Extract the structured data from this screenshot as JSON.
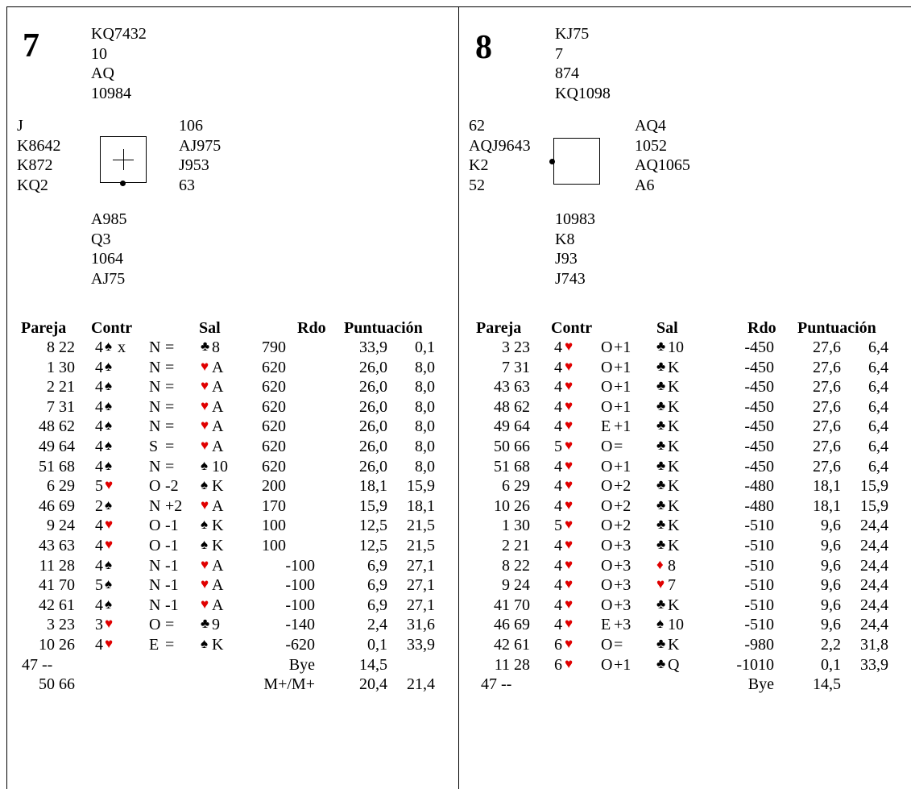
{
  "boards": [
    {
      "number": "7",
      "north": [
        "KQ7432",
        "10",
        "AQ",
        "10984"
      ],
      "west": [
        "J",
        "K8642",
        "K872",
        "KQ2"
      ],
      "east": [
        "106",
        "AJ975",
        "J953",
        "63"
      ],
      "south": [
        "A985",
        "Q3",
        "1064",
        "AJ75"
      ],
      "headers": {
        "pareja": "Pareja",
        "contr": "Contr",
        "sal": "Sal",
        "rdo": "Rdo",
        "puntuacion": "Puntuación"
      },
      "rows": [
        {
          "pair": "8 22",
          "lvl": "4",
          "csuit": "♠",
          "dbl": "x",
          "decl": "N",
          "res": "=",
          "lsuit": "♣",
          "lcard": "8",
          "rdo": "790",
          "rdo_neg": false,
          "p1": "33,9",
          "p2": "0,1"
        },
        {
          "pair": "1 30",
          "lvl": "4",
          "csuit": "♠",
          "dbl": "",
          "decl": "N",
          "res": "=",
          "lsuit": "♥",
          "lcard": "A",
          "rdo": "620",
          "rdo_neg": false,
          "p1": "26,0",
          "p2": "8,0"
        },
        {
          "pair": "2 21",
          "lvl": "4",
          "csuit": "♠",
          "dbl": "",
          "decl": "N",
          "res": "=",
          "lsuit": "♥",
          "lcard": "A",
          "rdo": "620",
          "rdo_neg": false,
          "p1": "26,0",
          "p2": "8,0"
        },
        {
          "pair": "7 31",
          "lvl": "4",
          "csuit": "♠",
          "dbl": "",
          "decl": "N",
          "res": "=",
          "lsuit": "♥",
          "lcard": "A",
          "rdo": "620",
          "rdo_neg": false,
          "p1": "26,0",
          "p2": "8,0"
        },
        {
          "pair": "48 62",
          "lvl": "4",
          "csuit": "♠",
          "dbl": "",
          "decl": "N",
          "res": "=",
          "lsuit": "♥",
          "lcard": "A",
          "rdo": "620",
          "rdo_neg": false,
          "p1": "26,0",
          "p2": "8,0"
        },
        {
          "pair": "49 64",
          "lvl": "4",
          "csuit": "♠",
          "dbl": "",
          "decl": "S",
          "res": "=",
          "lsuit": "♥",
          "lcard": "A",
          "rdo": "620",
          "rdo_neg": false,
          "p1": "26,0",
          "p2": "8,0"
        },
        {
          "pair": "51 68",
          "lvl": "4",
          "csuit": "♠",
          "dbl": "",
          "decl": "N",
          "res": "=",
          "lsuit": "♠",
          "lcard": "10",
          "rdo": "620",
          "rdo_neg": false,
          "p1": "26,0",
          "p2": "8,0"
        },
        {
          "pair": "6 29",
          "lvl": "5",
          "csuit": "♥",
          "dbl": "",
          "decl": "O",
          "res": "-2",
          "lsuit": "♠",
          "lcard": "K",
          "rdo": "200",
          "rdo_neg": false,
          "p1": "18,1",
          "p2": "15,9"
        },
        {
          "pair": "46 69",
          "lvl": "2",
          "csuit": "♠",
          "dbl": "",
          "decl": "N",
          "res": "+2",
          "lsuit": "♥",
          "lcard": "A",
          "rdo": "170",
          "rdo_neg": false,
          "p1": "15,9",
          "p2": "18,1"
        },
        {
          "pair": "9 24",
          "lvl": "4",
          "csuit": "♥",
          "dbl": "",
          "decl": "O",
          "res": "-1",
          "lsuit": "♠",
          "lcard": "K",
          "rdo": "100",
          "rdo_neg": false,
          "p1": "12,5",
          "p2": "21,5"
        },
        {
          "pair": "43 63",
          "lvl": "4",
          "csuit": "♥",
          "dbl": "",
          "decl": "O",
          "res": "-1",
          "lsuit": "♠",
          "lcard": "K",
          "rdo": "100",
          "rdo_neg": false,
          "p1": "12,5",
          "p2": "21,5"
        },
        {
          "pair": "11 28",
          "lvl": "4",
          "csuit": "♠",
          "dbl": "",
          "decl": "N",
          "res": "-1",
          "lsuit": "♥",
          "lcard": "A",
          "rdo": "-100",
          "rdo_neg": true,
          "p1": "6,9",
          "p2": "27,1"
        },
        {
          "pair": "41 70",
          "lvl": "5",
          "csuit": "♠",
          "dbl": "",
          "decl": "N",
          "res": "-1",
          "lsuit": "♥",
          "lcard": "A",
          "rdo": "-100",
          "rdo_neg": true,
          "p1": "6,9",
          "p2": "27,1"
        },
        {
          "pair": "42 61",
          "lvl": "4",
          "csuit": "♠",
          "dbl": "",
          "decl": "N",
          "res": "-1",
          "lsuit": "♥",
          "lcard": "A",
          "rdo": "-100",
          "rdo_neg": true,
          "p1": "6,9",
          "p2": "27,1"
        },
        {
          "pair": "3 23",
          "lvl": "3",
          "csuit": "♥",
          "dbl": "",
          "decl": "O",
          "res": "=",
          "lsuit": "♣",
          "lcard": "9",
          "rdo": "-140",
          "rdo_neg": true,
          "p1": "2,4",
          "p2": "31,6"
        },
        {
          "pair": "10 26",
          "lvl": "4",
          "csuit": "♥",
          "dbl": "",
          "decl": "E",
          "res": "=",
          "lsuit": "♠",
          "lcard": "K",
          "rdo": "-620",
          "rdo_neg": true,
          "p1": "0,1",
          "p2": "33,9"
        },
        {
          "pair": "47 --",
          "lvl": "",
          "csuit": "",
          "dbl": "",
          "decl": "",
          "res": "",
          "lsuit": "",
          "lcard": "",
          "rdo": "Bye",
          "rdo_neg": true,
          "p1": "14,5",
          "p2": ""
        },
        {
          "pair": "50 66",
          "lvl": "",
          "csuit": "",
          "dbl": "",
          "decl": "",
          "res": "",
          "lsuit": "",
          "lcard": "",
          "rdo": "M+/M+",
          "rdo_neg": true,
          "p1": "20,4",
          "p2": "21,4"
        }
      ]
    },
    {
      "number": "8",
      "north": [
        "KJ75",
        "7",
        "874",
        "KQ1098"
      ],
      "west": [
        "62",
        "AQJ9643",
        "K2",
        "52"
      ],
      "east": [
        "AQ4",
        "1052",
        "AQ1065",
        "A6"
      ],
      "south": [
        "10983",
        "K8",
        "J93",
        "J743"
      ],
      "headers": {
        "pareja": "Pareja",
        "contr": "Contr",
        "sal": "Sal",
        "rdo": "Rdo",
        "puntuacion": "Puntuación"
      },
      "rows": [
        {
          "pair": "3 23",
          "lvl": "4",
          "csuit": "♥",
          "dbl": "",
          "decl": "O",
          "res": "+1",
          "lsuit": "♣",
          "lcard": "10",
          "rdo": "-450",
          "p1": "27,6",
          "p2": "6,4"
        },
        {
          "pair": "7 31",
          "lvl": "4",
          "csuit": "♥",
          "dbl": "",
          "decl": "O",
          "res": "+1",
          "lsuit": "♣",
          "lcard": "K",
          "rdo": "-450",
          "p1": "27,6",
          "p2": "6,4"
        },
        {
          "pair": "43 63",
          "lvl": "4",
          "csuit": "♥",
          "dbl": "",
          "decl": "O",
          "res": "+1",
          "lsuit": "♣",
          "lcard": "K",
          "rdo": "-450",
          "p1": "27,6",
          "p2": "6,4"
        },
        {
          "pair": "48 62",
          "lvl": "4",
          "csuit": "♥",
          "dbl": "",
          "decl": "O",
          "res": "+1",
          "lsuit": "♣",
          "lcard": "K",
          "rdo": "-450",
          "p1": "27,6",
          "p2": "6,4"
        },
        {
          "pair": "49 64",
          "lvl": "4",
          "csuit": "♥",
          "dbl": "",
          "decl": "E",
          "res": "+1",
          "lsuit": "♣",
          "lcard": "K",
          "rdo": "-450",
          "p1": "27,6",
          "p2": "6,4"
        },
        {
          "pair": "50 66",
          "lvl": "5",
          "csuit": "♥",
          "dbl": "",
          "decl": "O",
          "res": "=",
          "lsuit": "♣",
          "lcard": "K",
          "rdo": "-450",
          "p1": "27,6",
          "p2": "6,4"
        },
        {
          "pair": "51 68",
          "lvl": "4",
          "csuit": "♥",
          "dbl": "",
          "decl": "O",
          "res": "+1",
          "lsuit": "♣",
          "lcard": "K",
          "rdo": "-450",
          "p1": "27,6",
          "p2": "6,4"
        },
        {
          "pair": "6 29",
          "lvl": "4",
          "csuit": "♥",
          "dbl": "",
          "decl": "O",
          "res": "+2",
          "lsuit": "♣",
          "lcard": "K",
          "rdo": "-480",
          "p1": "18,1",
          "p2": "15,9"
        },
        {
          "pair": "10 26",
          "lvl": "4",
          "csuit": "♥",
          "dbl": "",
          "decl": "O",
          "res": "+2",
          "lsuit": "♣",
          "lcard": "K",
          "rdo": "-480",
          "p1": "18,1",
          "p2": "15,9"
        },
        {
          "pair": "1 30",
          "lvl": "5",
          "csuit": "♥",
          "dbl": "",
          "decl": "O",
          "res": "+2",
          "lsuit": "♣",
          "lcard": "K",
          "rdo": "-510",
          "p1": "9,6",
          "p2": "24,4"
        },
        {
          "pair": "2 21",
          "lvl": "4",
          "csuit": "♥",
          "dbl": "",
          "decl": "O",
          "res": "+3",
          "lsuit": "♣",
          "lcard": "K",
          "rdo": "-510",
          "p1": "9,6",
          "p2": "24,4"
        },
        {
          "pair": "8 22",
          "lvl": "4",
          "csuit": "♥",
          "dbl": "",
          "decl": "O",
          "res": "+3",
          "lsuit": "♦",
          "lcard": "8",
          "rdo": "-510",
          "p1": "9,6",
          "p2": "24,4"
        },
        {
          "pair": "9 24",
          "lvl": "4",
          "csuit": "♥",
          "dbl": "",
          "decl": "O",
          "res": "+3",
          "lsuit": "♥",
          "lcard": "7",
          "rdo": "-510",
          "p1": "9,6",
          "p2": "24,4"
        },
        {
          "pair": "41 70",
          "lvl": "4",
          "csuit": "♥",
          "dbl": "",
          "decl": "O",
          "res": "+3",
          "lsuit": "♣",
          "lcard": "K",
          "rdo": "-510",
          "p1": "9,6",
          "p2": "24,4"
        },
        {
          "pair": "46 69",
          "lvl": "4",
          "csuit": "♥",
          "dbl": "",
          "decl": "E",
          "res": "+3",
          "lsuit": "♠",
          "lcard": "10",
          "rdo": "-510",
          "p1": "9,6",
          "p2": "24,4"
        },
        {
          "pair": "42 61",
          "lvl": "6",
          "csuit": "♥",
          "dbl": "",
          "decl": "O",
          "res": "=",
          "lsuit": "♣",
          "lcard": "K",
          "rdo": "-980",
          "p1": "2,2",
          "p2": "31,8"
        },
        {
          "pair": "11 28",
          "lvl": "6",
          "csuit": "♥",
          "dbl": "",
          "decl": "O",
          "res": "+1",
          "lsuit": "♣",
          "lcard": "Q",
          "rdo": "-1010",
          "p1": "0,1",
          "p2": "33,9"
        },
        {
          "pair": "47 --",
          "lvl": "",
          "csuit": "",
          "dbl": "",
          "decl": "",
          "res": "",
          "lsuit": "",
          "lcard": "",
          "rdo": "Bye",
          "p1": "14,5",
          "p2": ""
        }
      ]
    }
  ],
  "colors": {
    "red_suit": "#e00000",
    "black_suit": "#000000"
  }
}
